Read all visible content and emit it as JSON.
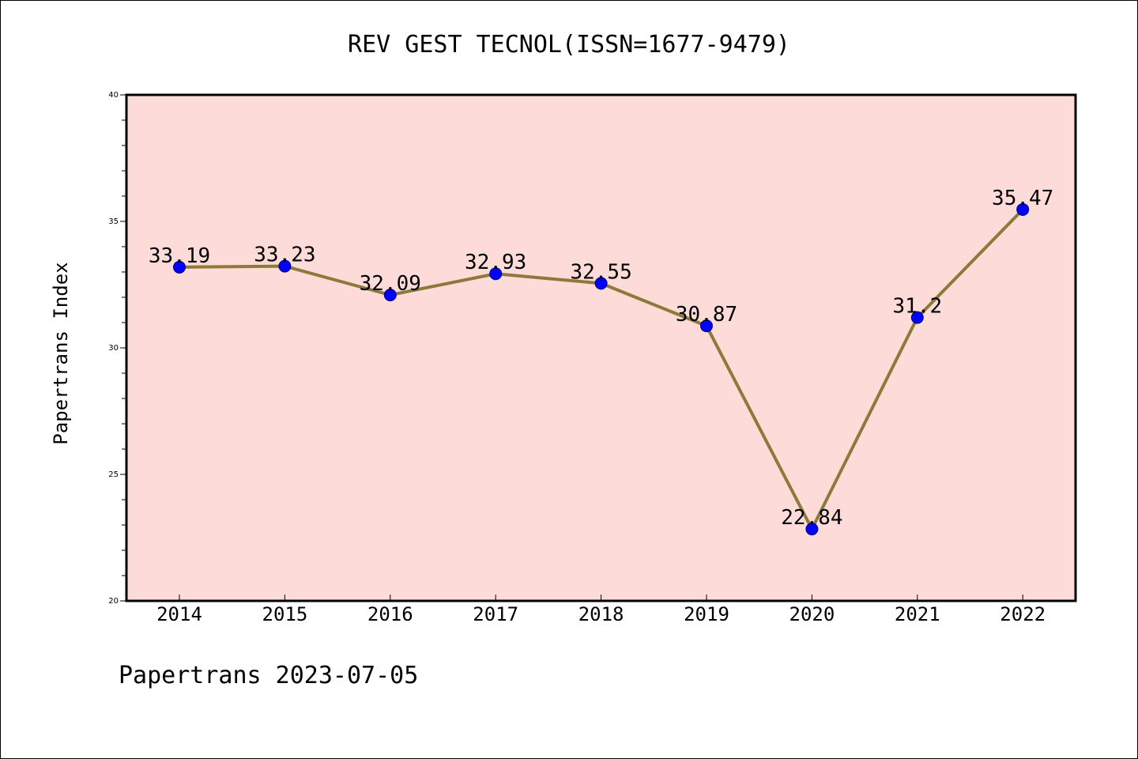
{
  "chart_data": {
    "type": "line",
    "title": "REV GEST TECNOL(ISSN=1677-9479)",
    "xlabel": "",
    "ylabel": "Papertrans Index",
    "categories": [
      "2014",
      "2015",
      "2016",
      "2017",
      "2018",
      "2019",
      "2020",
      "2021",
      "2022"
    ],
    "series": [
      {
        "values": [
          33.19,
          33.23,
          32.09,
          32.93,
          32.55,
          30.87,
          22.84,
          31.2,
          35.47
        ]
      }
    ],
    "data_labels": [
      "33.19",
      "33.23",
      "32.09",
      "32.93",
      "32.55",
      "30.87",
      "22.84",
      "31.2",
      "35.47"
    ],
    "ylim": [
      20,
      40
    ],
    "yticks": [
      "20",
      "25",
      "30",
      "35",
      "40"
    ],
    "grid": false,
    "colors": {
      "plot_background": "#fddbd8",
      "line": "#8b7a3a",
      "marker": "#0000ff"
    }
  },
  "footer": "Papertrans 2023-07-05"
}
